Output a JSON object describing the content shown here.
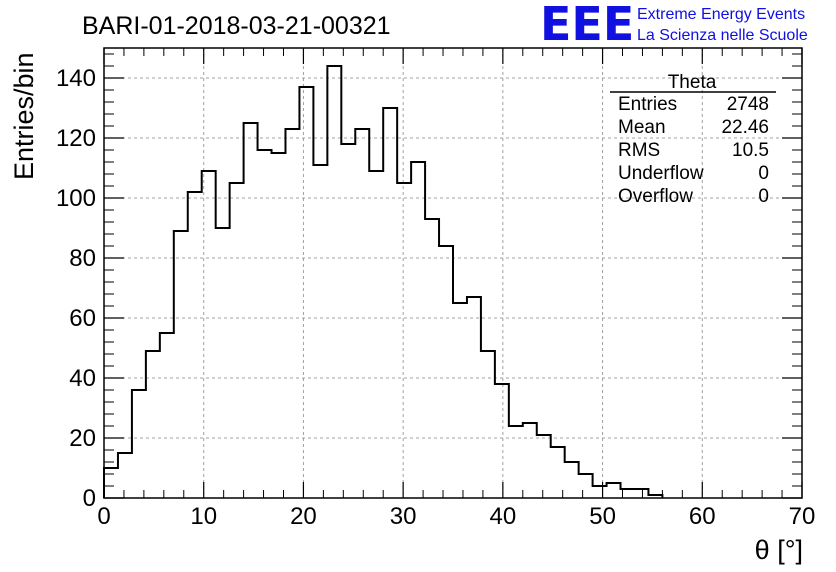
{
  "header": {
    "title": "BARI-01-2018-03-21-00321"
  },
  "logo": {
    "mark": "EEE",
    "line1": "Extreme Energy Events",
    "line2": "La Scienza nelle Scuole",
    "color": "#1010e0"
  },
  "stats_box": {
    "title": "Theta",
    "rows": [
      {
        "label": "Entries",
        "value": "2748"
      },
      {
        "label": "Mean",
        "value": "22.46"
      },
      {
        "label": "RMS",
        "value": "10.5"
      },
      {
        "label": "Underflow",
        "value": "0"
      },
      {
        "label": "Overflow",
        "value": "0"
      }
    ]
  },
  "chart_data": {
    "type": "bar",
    "style": "step-histogram",
    "title": "BARI-01-2018-03-21-00321",
    "xlabel": "θ [°]",
    "ylabel": "Entries/bin",
    "xlim": [
      0,
      70
    ],
    "ylim": [
      0,
      150
    ],
    "grid": true,
    "bin_width": 1.4,
    "bin_edges_start": 0,
    "x_ticks": [
      "0",
      "10",
      "20",
      "30",
      "40",
      "50",
      "60",
      "70"
    ],
    "y_ticks": [
      "0",
      "20",
      "40",
      "60",
      "80",
      "100",
      "120",
      "140"
    ],
    "values": [
      10,
      15,
      36,
      49,
      55,
      89,
      102,
      109,
      90,
      105,
      125,
      116,
      115,
      123,
      137,
      111,
      144,
      118,
      123,
      109,
      130,
      105,
      112,
      93,
      84,
      65,
      67,
      49,
      38,
      24,
      25,
      21,
      17,
      12,
      8,
      4,
      5,
      3,
      3,
      1
    ]
  }
}
